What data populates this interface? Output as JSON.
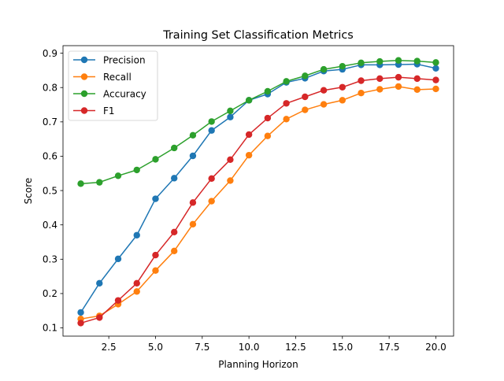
{
  "chart_data": {
    "type": "line",
    "title": "Training Set Classification Metrics",
    "xlabel": "Planning Horizon",
    "ylabel": "Score",
    "xlim": [
      0.05,
      20.95
    ],
    "ylim": [
      0.076,
      0.922
    ],
    "xticks": [
      2.5,
      5.0,
      7.5,
      10.0,
      12.5,
      15.0,
      17.5,
      20.0
    ],
    "xtick_labels": [
      "2.5",
      "5.0",
      "7.5",
      "10.0",
      "12.5",
      "15.0",
      "17.5",
      "20.0"
    ],
    "yticks": [
      0.1,
      0.2,
      0.3,
      0.4,
      0.5,
      0.6,
      0.7,
      0.8,
      0.9
    ],
    "ytick_labels": [
      "0.1",
      "0.2",
      "0.3",
      "0.4",
      "0.5",
      "0.6",
      "0.7",
      "0.8",
      "0.9"
    ],
    "grid": false,
    "legend_position": "top-left",
    "x": [
      1,
      2,
      3,
      4,
      5,
      6,
      7,
      8,
      9,
      10,
      11,
      12,
      13,
      14,
      15,
      16,
      17,
      18,
      19,
      20
    ],
    "series": [
      {
        "name": "Precision",
        "color": "#1f77b4",
        "values": [
          0.145,
          0.23,
          0.301,
          0.37,
          0.476,
          0.536,
          0.601,
          0.675,
          0.714,
          0.763,
          0.781,
          0.815,
          0.827,
          0.848,
          0.853,
          0.866,
          0.866,
          0.867,
          0.868,
          0.856
        ]
      },
      {
        "name": "Recall",
        "color": "#ff7f0e",
        "values": [
          0.126,
          0.135,
          0.169,
          0.206,
          0.267,
          0.324,
          0.402,
          0.469,
          0.529,
          0.603,
          0.659,
          0.708,
          0.735,
          0.751,
          0.763,
          0.784,
          0.795,
          0.803,
          0.794,
          0.796
        ]
      },
      {
        "name": "Accuracy",
        "color": "#2ca02c",
        "values": [
          0.52,
          0.524,
          0.543,
          0.56,
          0.591,
          0.624,
          0.661,
          0.701,
          0.732,
          0.763,
          0.789,
          0.818,
          0.834,
          0.853,
          0.862,
          0.872,
          0.876,
          0.879,
          0.877,
          0.873
        ]
      },
      {
        "name": "F1",
        "color": "#d62728",
        "values": [
          0.114,
          0.13,
          0.18,
          0.23,
          0.312,
          0.379,
          0.465,
          0.535,
          0.59,
          0.663,
          0.711,
          0.754,
          0.773,
          0.792,
          0.801,
          0.82,
          0.826,
          0.83,
          0.826,
          0.822
        ]
      }
    ]
  }
}
